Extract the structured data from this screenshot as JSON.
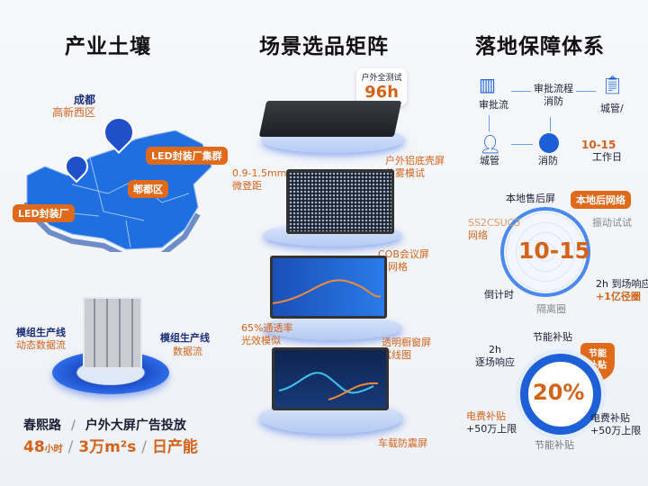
{
  "columns": {
    "industry": {
      "title": "产业土壤",
      "map_labels": {
        "chengdu": "成都",
        "gaoxin": "高新西区",
        "cluster": "LED封装厂集群",
        "pidu": "郫都区",
        "factory": "LED封装厂"
      },
      "line_left": [
        "模组生产线",
        "动态数据流"
      ],
      "line_right": [
        "模组生产线",
        "数据流"
      ],
      "stats_row1": [
        "春熙路",
        "/",
        "户外大屏广告投放"
      ],
      "stats_row2": {
        "hours": "48",
        "hours_unit": "小时",
        "sep1": "/",
        "area": "3万m²s",
        "sep2": "/",
        "capacity": "日产能"
      }
    },
    "scenarios": {
      "title": "场景选品矩阵",
      "callout": {
        "label": "户外全测试",
        "value": "96h"
      },
      "items": [
        {
          "label": [
            "户外铝底壳屏",
            "盐雾模试"
          ]
        },
        {
          "side": [
            "0.9-1.5mm",
            "微登距"
          ],
          "label": [
            "COB会议屏",
            "网网格"
          ]
        },
        {
          "side": [
            "65%通透率",
            "光效模似"
          ],
          "label": [
            "透明橱窗屏",
            "试线图"
          ]
        },
        {
          "label": [
            "车载防震屏"
          ]
        }
      ]
    },
    "guarantee": {
      "title": "落地保障体系",
      "flow": {
        "n1": "审批流",
        "mid": [
          "审批流程",
          "消防"
        ],
        "n2": "城管/",
        "n3": "城管",
        "n4": "消防",
        "days": "10-15",
        "days_unit": "工作日"
      },
      "radar": {
        "value": "10-15",
        "top": "本地售后屏",
        "tag": "本地后网络",
        "right_top": "振动试试",
        "left_top": [
          "SS2CSUC3",
          "网络"
        ],
        "right_bottom": [
          "2h 到场响应",
          "+1亿径圈"
        ],
        "left_bottom": "倒计时",
        "bottom": "隔离圈"
      },
      "donut": {
        "value": "20%",
        "top": "节能补贴",
        "badge": [
          "节能",
          "补贴"
        ],
        "left_top": [
          "2h",
          "逐场响应"
        ],
        "left_bottom": [
          "电费补贴",
          "+50万上限"
        ],
        "right_bottom": [
          "电费补贴",
          "+50万上限"
        ],
        "bottom": "节能补贴"
      }
    }
  },
  "colors": {
    "accent": "#d4631a",
    "blue": "#1c5fd6",
    "navy": "#1c2f7a"
  }
}
